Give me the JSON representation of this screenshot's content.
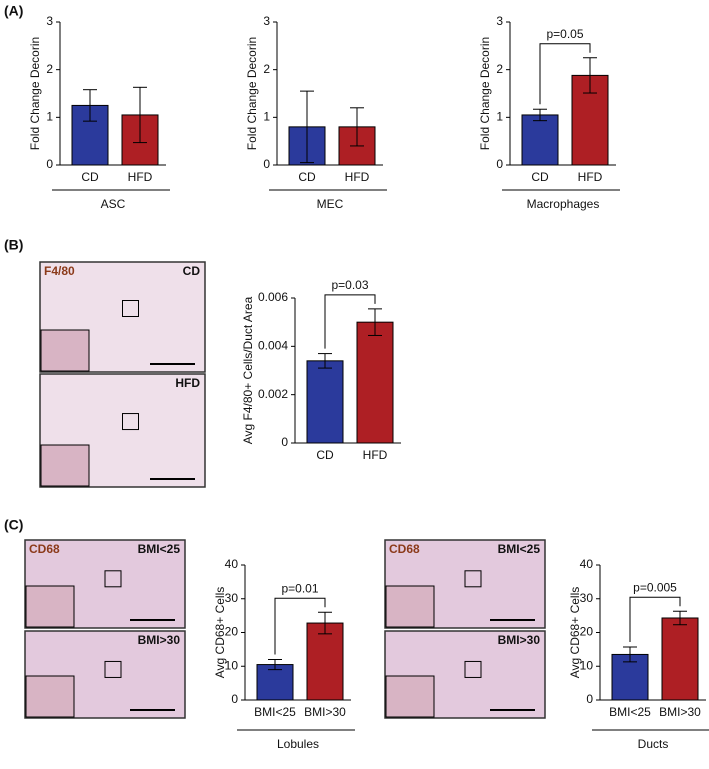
{
  "panel_labels": [
    "(A)",
    "(B)",
    "(C)"
  ],
  "images": [
    {
      "stain": "F4/80",
      "labels": [
        "CD",
        "HFD"
      ]
    },
    {
      "stain": "CD68",
      "labels": [
        "BMI<25",
        "BMI>30"
      ]
    },
    {
      "stain": "CD68",
      "labels": [
        "BMI<25",
        "BMI>30"
      ]
    }
  ],
  "chart_data": [
    {
      "type": "bar",
      "y_label": "Fold Change Decorin",
      "group_label": "ASC",
      "categories": [
        "CD",
        "HFD"
      ],
      "values": [
        1.25,
        1.05
      ],
      "errors": [
        0.33,
        0.58
      ],
      "colors": [
        "#2b3a9c",
        "#ae1f24"
      ],
      "ylim": [
        0,
        3
      ],
      "yticks": [
        0,
        1,
        2,
        3
      ]
    },
    {
      "type": "bar",
      "y_label": "Fold Change Decorin",
      "group_label": "MEC",
      "categories": [
        "CD",
        "HFD"
      ],
      "values": [
        0.8,
        0.8
      ],
      "errors": [
        0.75,
        0.4
      ],
      "colors": [
        "#2b3a9c",
        "#ae1f24"
      ],
      "ylim": [
        0,
        3
      ],
      "yticks": [
        0,
        1,
        2,
        3
      ]
    },
    {
      "type": "bar",
      "y_label": "Fold Change Decorin",
      "group_label": "Macrophages",
      "annotation": "p=0.05",
      "categories": [
        "CD",
        "HFD"
      ],
      "values": [
        1.05,
        1.88
      ],
      "errors": [
        0.12,
        0.37
      ],
      "colors": [
        "#2b3a9c",
        "#ae1f24"
      ],
      "ylim": [
        0,
        3
      ],
      "yticks": [
        0,
        1,
        2,
        3
      ]
    },
    {
      "type": "bar",
      "y_label": "Avg F4/80+ Cells/Duct Area",
      "annotation": "p=0.03",
      "categories": [
        "CD",
        "HFD"
      ],
      "values": [
        0.0034,
        0.005
      ],
      "errors": [
        0.0003,
        0.00055
      ],
      "colors": [
        "#2b3a9c",
        "#ae1f24"
      ],
      "ylim": [
        0,
        0.006
      ],
      "yticks": [
        0,
        0.002,
        0.004,
        0.006
      ]
    },
    {
      "type": "bar",
      "y_label": "Avg CD68+ Cells",
      "group_label": "Lobules",
      "annotation": "p=0.01",
      "categories": [
        "BMI<25",
        "BMI>30"
      ],
      "values": [
        10.5,
        22.8
      ],
      "errors": [
        1.5,
        3.2
      ],
      "colors": [
        "#2b3a9c",
        "#ae1f24"
      ],
      "ylim": [
        0,
        40
      ],
      "yticks": [
        0,
        10,
        20,
        30,
        40
      ]
    },
    {
      "type": "bar",
      "y_label": "Avg CD68+ Cells",
      "group_label": "Ducts",
      "annotation": "p=0.005",
      "categories": [
        "BMI<25",
        "BMI>30"
      ],
      "values": [
        13.5,
        24.3
      ],
      "errors": [
        2.2,
        2.0
      ],
      "colors": [
        "#2b3a9c",
        "#ae1f24"
      ],
      "ylim": [
        0,
        40
      ],
      "yticks": [
        0,
        10,
        20,
        30,
        40
      ]
    }
  ]
}
